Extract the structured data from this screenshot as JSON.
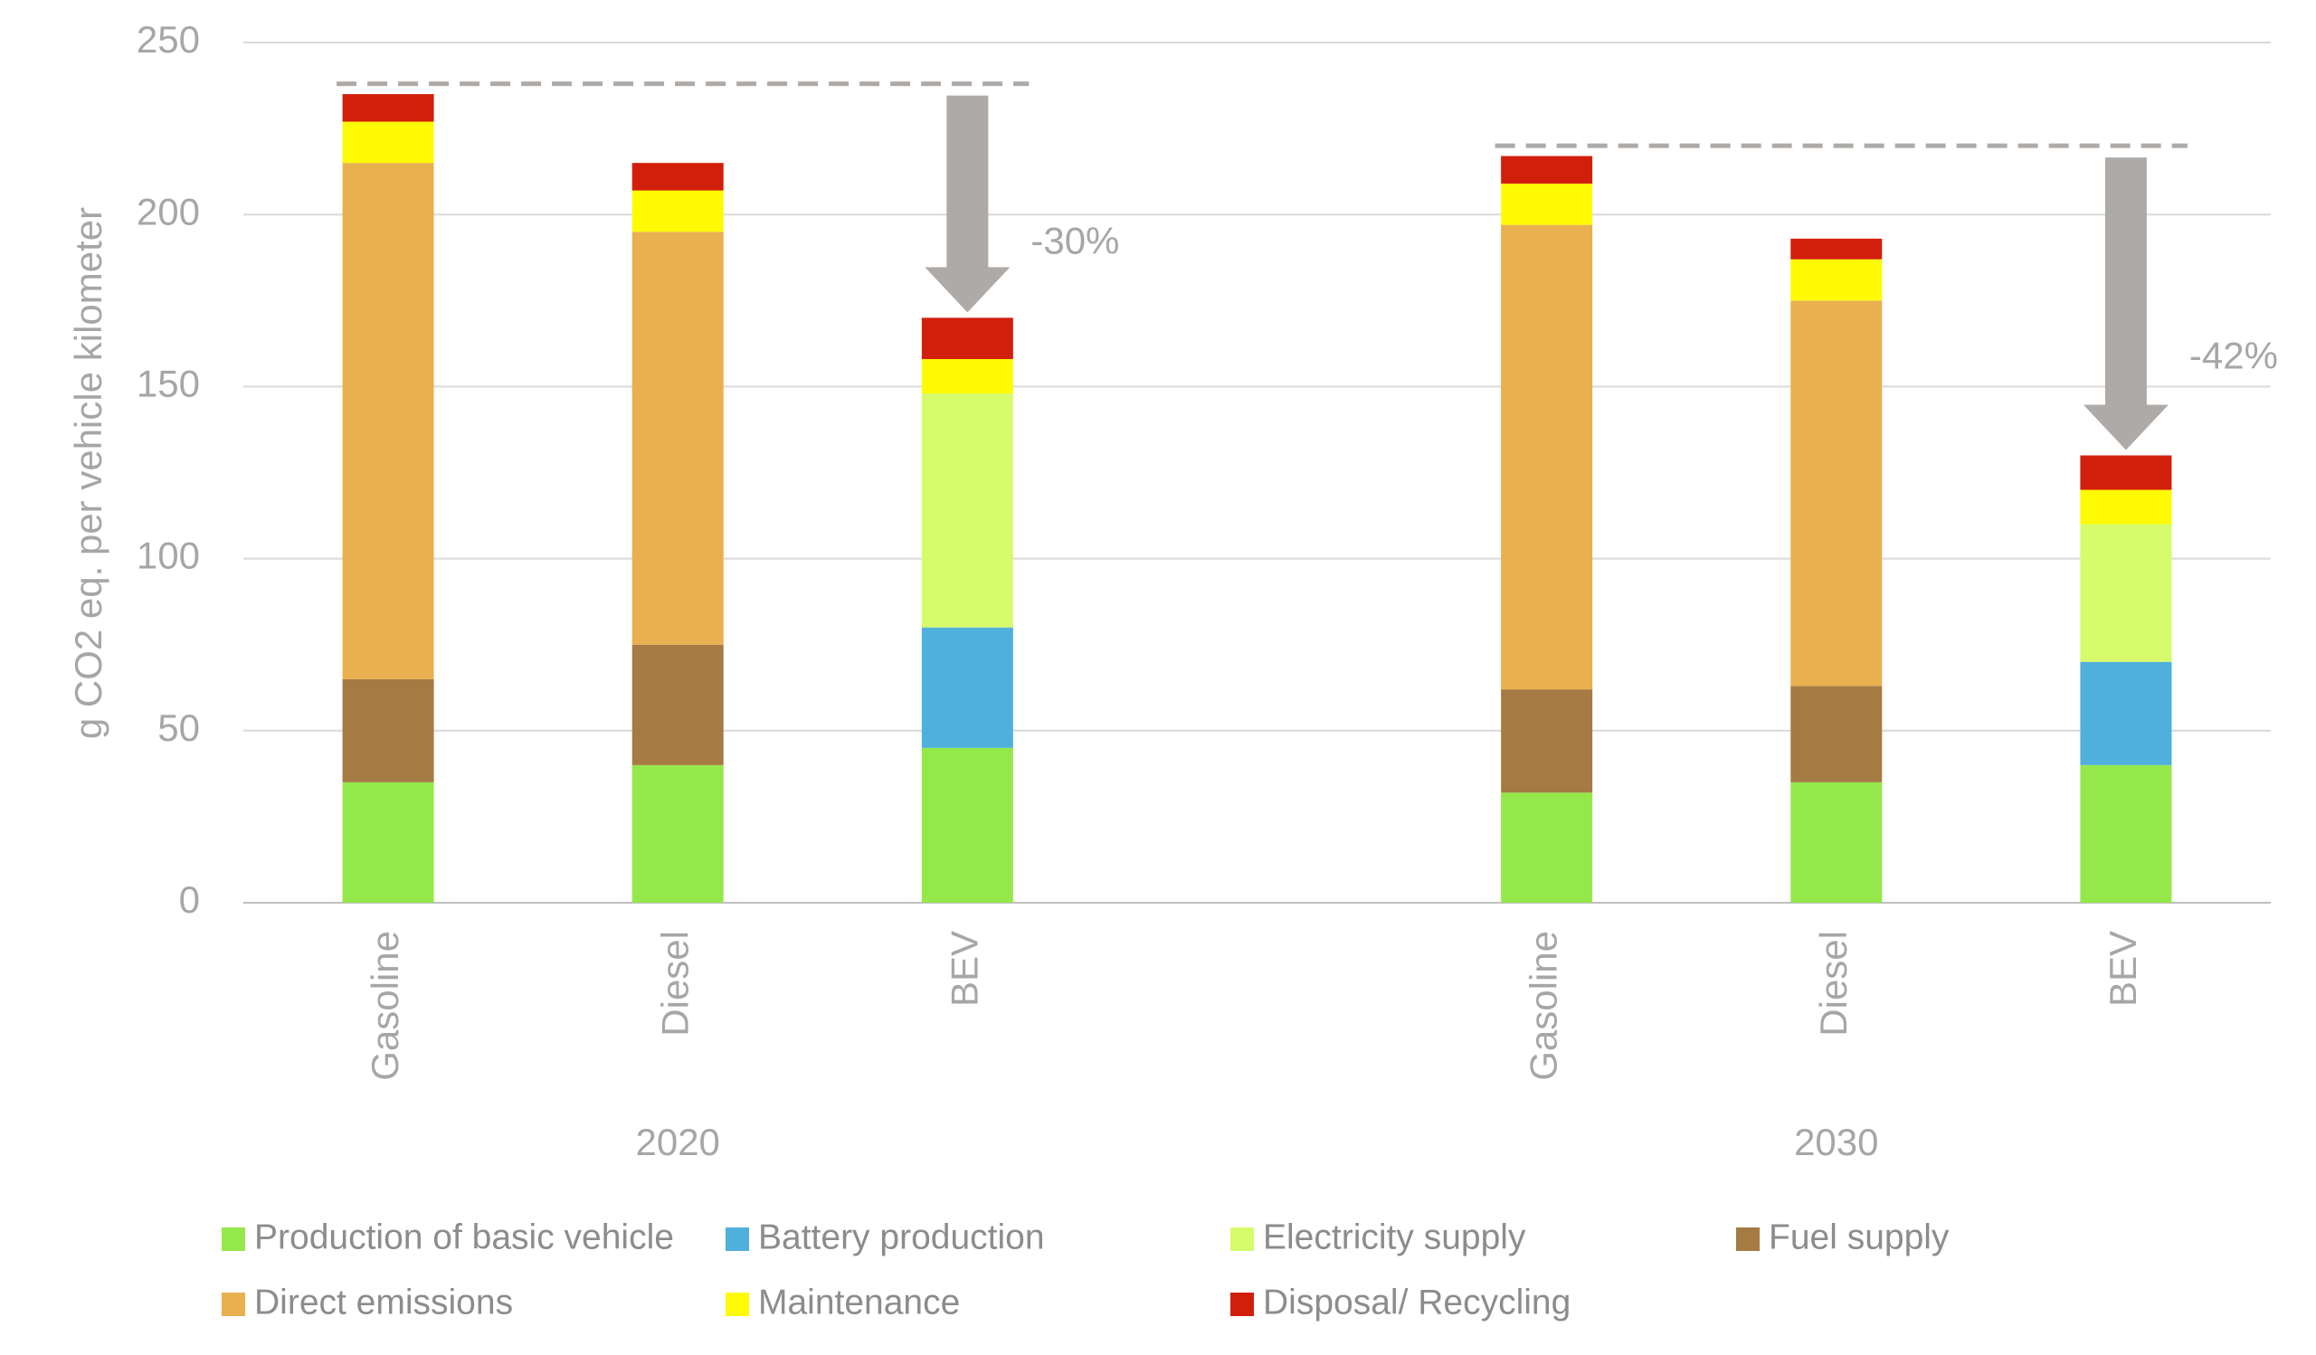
{
  "chart_data": {
    "type": "stacked-bar",
    "y_label": "g CO2 eq. per vehicle kilometer",
    "categories": [
      "Gasoline",
      "Diesel",
      "BEV",
      "Gasoline",
      "Diesel",
      "BEV"
    ],
    "groups": [
      "2020",
      "2030"
    ],
    "series": [
      {
        "name": "Production of basic vehicle",
        "color": "#95e84a",
        "values": [
          35,
          40,
          45,
          32,
          35,
          40
        ]
      },
      {
        "name": "Battery production",
        "color": "#4fb0dc",
        "values": [
          0,
          0,
          35,
          0,
          0,
          30
        ]
      },
      {
        "name": "Electricity supply",
        "color": "#d6fb6b",
        "values": [
          0,
          0,
          68,
          0,
          0,
          40
        ]
      },
      {
        "name": "Fuel supply",
        "color": "#a57a43",
        "values": [
          30,
          35,
          0,
          30,
          28,
          0
        ]
      },
      {
        "name": "Direct emissions",
        "color": "#e9b04f",
        "values": [
          150,
          120,
          0,
          135,
          112,
          0
        ]
      },
      {
        "name": "Maintenance",
        "color": "#fefb05",
        "values": [
          12,
          12,
          10,
          12,
          12,
          10
        ]
      },
      {
        "name": "Disposal/ Recycling",
        "color": "#d11f0b",
        "values": [
          8,
          8,
          12,
          8,
          6,
          10
        ]
      }
    ],
    "annotations": [
      {
        "label": "-30%",
        "value": 238
      },
      {
        "label": "-42%",
        "value": 220
      }
    ],
    "ylim": [
      0,
      250
    ],
    "yticks": [
      0,
      50,
      100,
      150,
      200,
      250
    ],
    "grid": true
  }
}
